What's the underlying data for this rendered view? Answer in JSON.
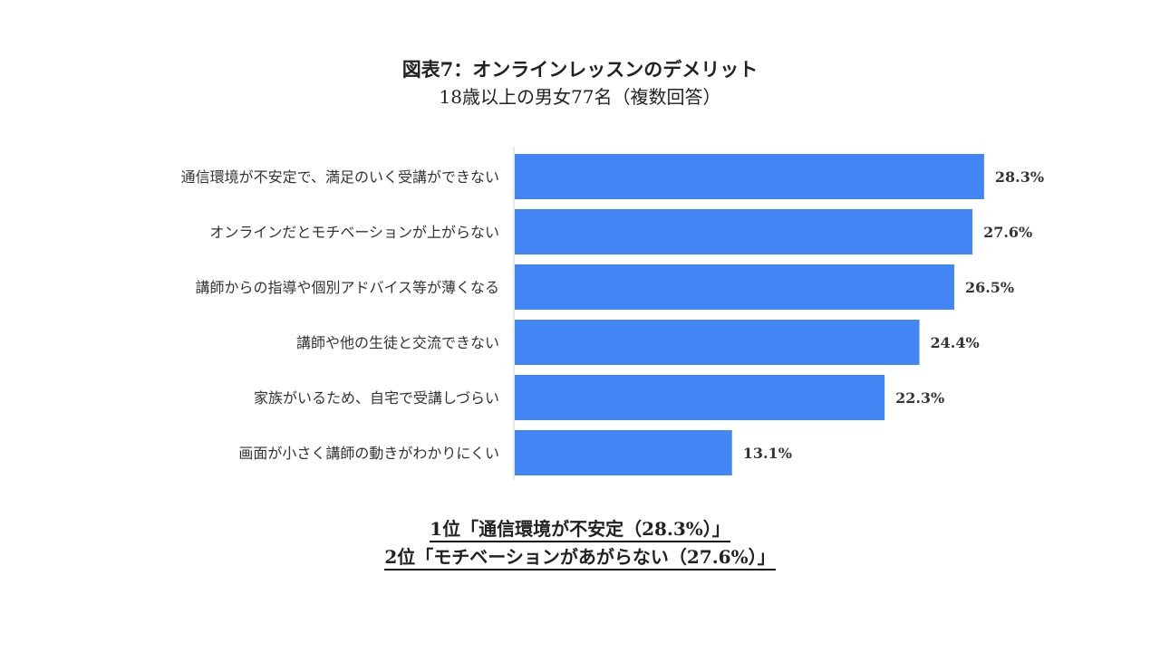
{
  "chart_data": {
    "type": "bar",
    "orientation": "horizontal",
    "title": "図表7：オンラインレッスンのデメリット",
    "subtitle": "18歳以上の男女77名（複数回答）",
    "categories": [
      "通信環境が不安定で、満足のいく受講ができない",
      "オンラインだとモチベーションが上がらない",
      "講師からの指導や個別アドバイス等が薄くなる",
      "講師や他の生徒と交流できない",
      "家族がいるため、自宅で受講しづらい",
      "画面が小さく講師の動きがわかりにくい"
    ],
    "values": [
      28.3,
      27.6,
      26.5,
      24.4,
      22.3,
      13.1
    ],
    "value_labels": [
      "28.3%",
      "27.6%",
      "26.5%",
      "24.4%",
      "22.3%",
      "13.1%"
    ],
    "unit": "%",
    "xlim": [
      0,
      30
    ],
    "grid": false,
    "legend": "none",
    "bar_color": "#4285F4"
  },
  "summary": {
    "line1": "1位「通信環境が不安定（28.3%）」",
    "line2": "2位「モチベーションがあがらない（27.6%）」"
  }
}
